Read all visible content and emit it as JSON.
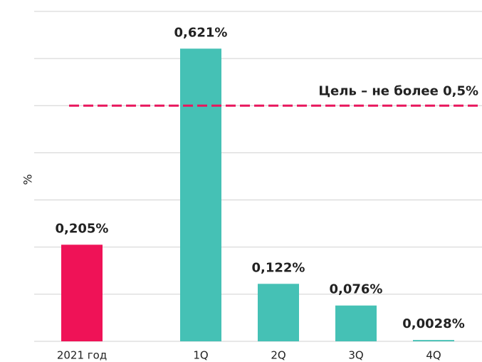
{
  "chart_data": {
    "type": "bar",
    "y_label": "%",
    "categories": [
      "2021 год",
      "1Q",
      "2Q",
      "3Q",
      "4Q"
    ],
    "values": [
      0.205,
      0.621,
      0.122,
      0.076,
      0.0028
    ],
    "value_labels": [
      "0,205%",
      "0,621%",
      "0,122%",
      "0,076%",
      "0,0028%"
    ],
    "colors": [
      "#ef1257",
      "#45c1b5",
      "#45c1b5",
      "#45c1b5",
      "#45c1b5"
    ],
    "ylim": [
      0,
      0.7
    ],
    "yticks": [
      0,
      0.1,
      0.2,
      0.3,
      0.4,
      0.5,
      0.6,
      0.7
    ],
    "grid": true,
    "target": {
      "value": 0.5,
      "label": "Цель – не более 0,5%",
      "color": "#e8175d"
    }
  }
}
